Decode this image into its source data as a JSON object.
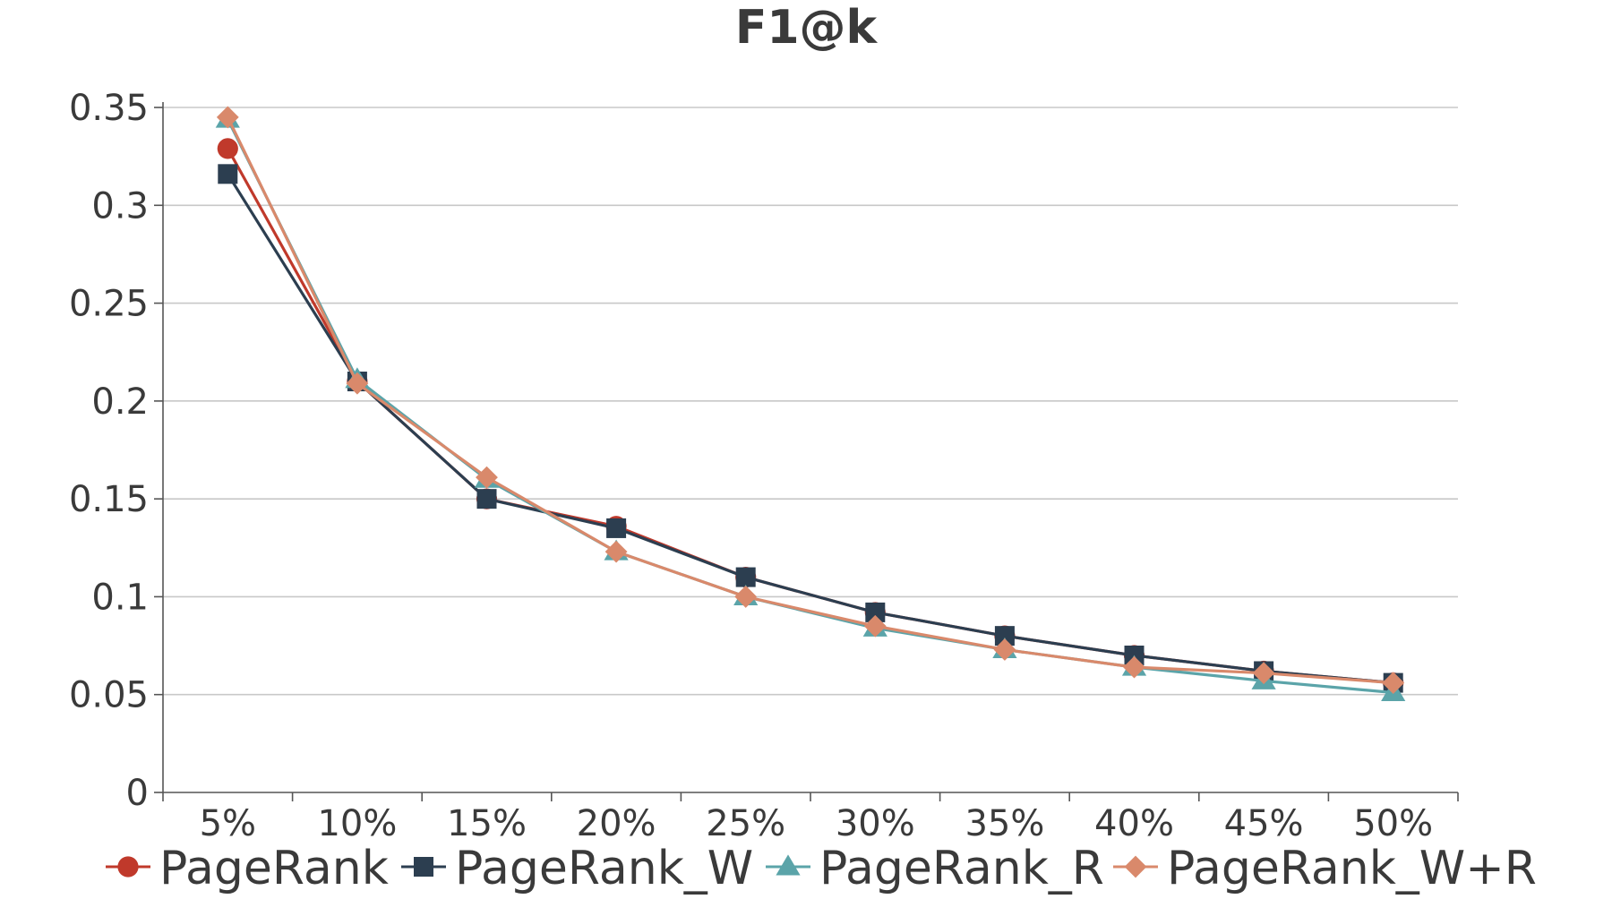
{
  "chart_data": {
    "type": "line",
    "title": "F1@k",
    "xlabel": "",
    "ylabel": "",
    "categories": [
      "5%",
      "10%",
      "15%",
      "20%",
      "25%",
      "30%",
      "35%",
      "40%",
      "45%",
      "50%"
    ],
    "y_ticks": [
      "0",
      "0.05",
      "0.1",
      "0.15",
      "0.2",
      "0.25",
      "0.3",
      "0.35"
    ],
    "ylim": [
      0,
      0.35
    ],
    "grid": "horizontal",
    "legend_position": "bottom",
    "series": [
      {
        "name": "PageRank",
        "color": "#c0392b",
        "marker": "circle",
        "values": [
          0.329,
          0.21,
          0.15,
          0.136,
          0.11,
          0.092,
          0.08,
          0.07,
          0.062,
          0.056
        ]
      },
      {
        "name": "PageRank_W",
        "color": "#2c3e50",
        "marker": "square",
        "values": [
          0.316,
          0.21,
          0.15,
          0.135,
          0.11,
          0.092,
          0.08,
          0.07,
          0.062,
          0.056
        ]
      },
      {
        "name": "PageRank_R",
        "color": "#5ba4a9",
        "marker": "triangle",
        "values": [
          0.344,
          0.211,
          0.16,
          0.123,
          0.1,
          0.084,
          0.073,
          0.064,
          0.057,
          0.051
        ]
      },
      {
        "name": "PageRank_W+R",
        "color": "#d9896b",
        "marker": "diamond",
        "values": [
          0.345,
          0.209,
          0.161,
          0.123,
          0.1,
          0.085,
          0.073,
          0.064,
          0.061,
          0.056
        ]
      }
    ]
  }
}
